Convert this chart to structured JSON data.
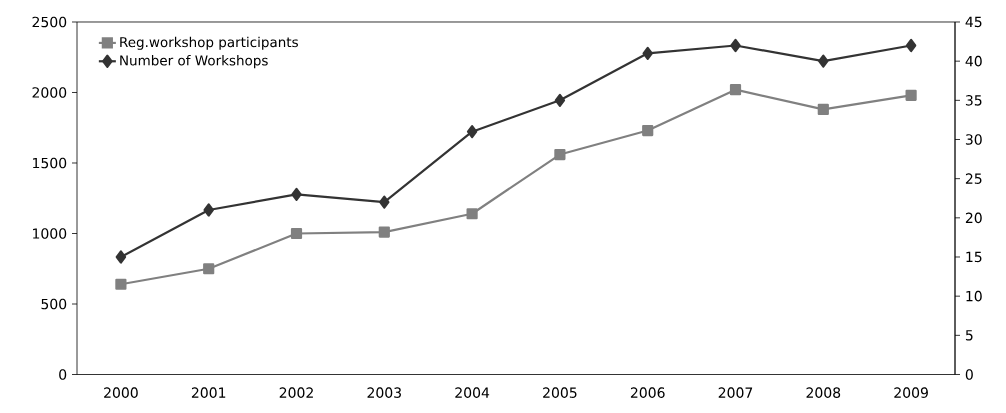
{
  "chart_data": {
    "type": "line",
    "categories": [
      "2000",
      "2001",
      "2002",
      "2003",
      "2004",
      "2005",
      "2006",
      "2007",
      "2008",
      "2009"
    ],
    "series": [
      {
        "name": "Reg.workshop participants",
        "color": "#808080",
        "marker": "square",
        "values": [
          640,
          750,
          1000,
          1010,
          1140,
          1560,
          1730,
          2020,
          1880,
          1980
        ]
      },
      {
        "name": "Number of Workshops",
        "color": "#333333",
        "marker": "diamond",
        "axis": "y2",
        "values": [
          15,
          21,
          23,
          22,
          31,
          35,
          41,
          42,
          40,
          42
        ]
      }
    ],
    "ylim": [
      0,
      2500
    ],
    "yticks": [
      0,
      500,
      1000,
      1500,
      2000,
      2500
    ],
    "y2lim": [
      0,
      45
    ],
    "y2ticks": [
      0,
      5,
      10,
      15,
      20,
      25,
      30,
      35,
      40,
      45
    ],
    "legend": "top left",
    "line_style": "solid"
  }
}
